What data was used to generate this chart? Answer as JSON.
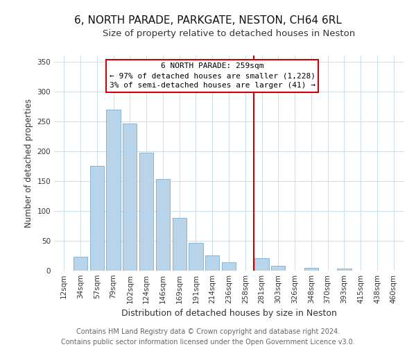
{
  "title": "6, NORTH PARADE, PARKGATE, NESTON, CH64 6RL",
  "subtitle": "Size of property relative to detached houses in Neston",
  "xlabel": "Distribution of detached houses by size in Neston",
  "ylabel": "Number of detached properties",
  "footer_line1": "Contains HM Land Registry data © Crown copyright and database right 2024.",
  "footer_line2": "Contains public sector information licensed under the Open Government Licence v3.0.",
  "bar_labels": [
    "12sqm",
    "34sqm",
    "57sqm",
    "79sqm",
    "102sqm",
    "124sqm",
    "146sqm",
    "169sqm",
    "191sqm",
    "214sqm",
    "236sqm",
    "258sqm",
    "281sqm",
    "303sqm",
    "326sqm",
    "348sqm",
    "370sqm",
    "393sqm",
    "415sqm",
    "438sqm",
    "460sqm"
  ],
  "bar_values": [
    0,
    23,
    175,
    270,
    246,
    198,
    153,
    88,
    47,
    25,
    14,
    0,
    21,
    8,
    0,
    5,
    0,
    4,
    0,
    0,
    0
  ],
  "bar_color": "#b8d4ea",
  "bar_edge_color": "#8ab4d4",
  "vline_color": "#cc0000",
  "annotation_line1": "6 NORTH PARADE: 259sqm",
  "annotation_line2": "← 97% of detached houses are smaller (1,228)",
  "annotation_line3": "3% of semi-detached houses are larger (41) →",
  "annotation_box_color": "#ffffff",
  "annotation_box_edge": "#cc0000",
  "ylim": [
    0,
    360
  ],
  "yticks": [
    0,
    50,
    100,
    150,
    200,
    250,
    300,
    350
  ],
  "title_fontsize": 11,
  "subtitle_fontsize": 9.5,
  "xlabel_fontsize": 9,
  "ylabel_fontsize": 8.5,
  "footer_fontsize": 7,
  "tick_fontsize": 7.5,
  "annot_fontsize": 8
}
